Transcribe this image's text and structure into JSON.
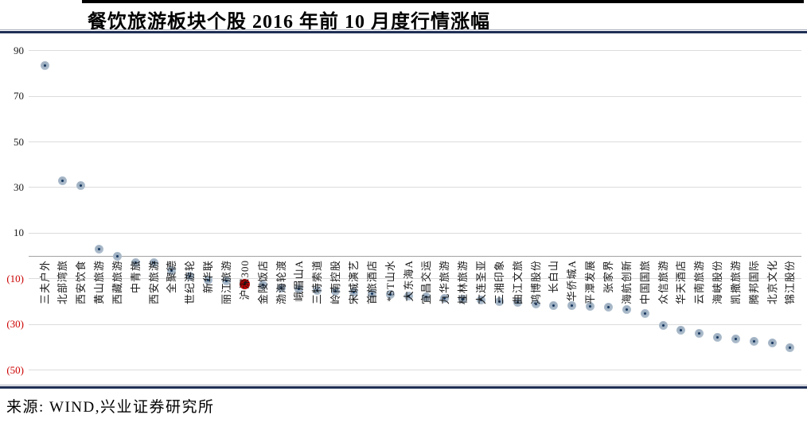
{
  "header": {
    "title": "餐饮旅游板块个股 2016 年前 10 月度行情涨幅"
  },
  "footer": {
    "source": "来源: WIND,兴业证券研究所"
  },
  "chart_data": {
    "type": "scatter",
    "title": "餐饮旅游板块个股 2016 年前 10 月度行情涨幅",
    "xlabel": "",
    "ylabel": "",
    "ylim": [
      -50,
      90
    ],
    "grid": true,
    "legend": "none",
    "unit": "%",
    "ytick_values": [
      90,
      70,
      50,
      30,
      10,
      -10,
      -30,
      -50
    ],
    "ytick_labels": [
      "90",
      "70",
      "50",
      "30",
      "10",
      "(10)",
      "(30)",
      "(50)"
    ],
    "highlight_category": "沪深300",
    "colors": {
      "marker": "#a9b9c9",
      "marker_dot": "#17365d",
      "highlight_marker": "#c00000",
      "negative_tick_label": "#cc0000",
      "gridline": "#dcdcdc",
      "axis_line": "#a3a3a3",
      "header_rule": "#1f2f55"
    },
    "points": [
      {
        "name": "三夫户外",
        "value": 83.5
      },
      {
        "name": "北部湾旅",
        "value": 33
      },
      {
        "name": "西安饮食",
        "value": 31
      },
      {
        "name": "黄山旅游",
        "value": 3
      },
      {
        "name": "西藏旅游",
        "value": -0.3
      },
      {
        "name": "中青旅",
        "value": -2.8
      },
      {
        "name": "西安旅游",
        "value": -3
      },
      {
        "name": "全聚德",
        "value": -6.3
      },
      {
        "name": "世纪游轮",
        "value": -9
      },
      {
        "name": "新华联",
        "value": -10.8
      },
      {
        "name": "丽江旅游",
        "value": -11
      },
      {
        "name": "沪深300",
        "value": -12.2
      },
      {
        "name": "金陵饭店",
        "value": -12.6
      },
      {
        "name": "渤海轮渡",
        "value": -14
      },
      {
        "name": "峨眉山A",
        "value": -14.3
      },
      {
        "name": "三特索道",
        "value": -15
      },
      {
        "name": "岭南控股",
        "value": -15.5
      },
      {
        "name": "宋城演艺",
        "value": -16
      },
      {
        "name": "首旅酒店",
        "value": -16.5
      },
      {
        "name": "*ST山水",
        "value": -17
      },
      {
        "name": "大东海A",
        "value": -17.5
      },
      {
        "name": "宜昌交运",
        "value": -18
      },
      {
        "name": "九华旅游",
        "value": -18.5
      },
      {
        "name": "桂林旅游",
        "value": -19
      },
      {
        "name": "大连圣亚",
        "value": -19.5
      },
      {
        "name": "三湘印象",
        "value": -20
      },
      {
        "name": "曲江文旅",
        "value": -20.5
      },
      {
        "name": "鸿博股份",
        "value": -21
      },
      {
        "name": "长白山",
        "value": -21.7
      },
      {
        "name": "华侨城A",
        "value": -21.9
      },
      {
        "name": "平潭发展",
        "value": -22.1
      },
      {
        "name": "张家界",
        "value": -22.3
      },
      {
        "name": "海航创新",
        "value": -23.5
      },
      {
        "name": "中国国旅",
        "value": -25.3
      },
      {
        "name": "众信旅游",
        "value": -30.5
      },
      {
        "name": "华天酒店",
        "value": -32.5
      },
      {
        "name": "云南旅游",
        "value": -34
      },
      {
        "name": "海峡股份",
        "value": -35.8
      },
      {
        "name": "凯撒旅游",
        "value": -36.4
      },
      {
        "name": "腾邦国际",
        "value": -37.5
      },
      {
        "name": "北京文化",
        "value": -38.2
      },
      {
        "name": "锦江股份",
        "value": -40.4
      }
    ]
  }
}
